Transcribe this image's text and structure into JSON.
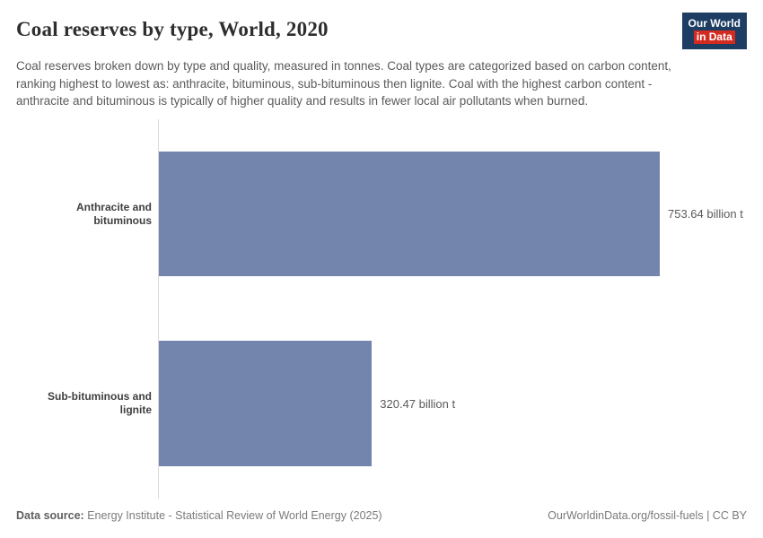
{
  "header": {
    "title": "Coal reserves by type, World, 2020",
    "subtitle": "Coal reserves broken down by type and quality, measured in tonnes. Coal types are categorized based on carbon content, ranking highest to lowest as: anthracite, bituminous, sub-bituminous then lignite. Coal with the highest carbon content - anthracite and bituminous is typically of higher quality and results in fewer local air pollutants when burned.",
    "logo": {
      "line1": "Our World",
      "line2": "in Data",
      "bg_color": "#1d3d63",
      "accent_color": "#d42b21"
    }
  },
  "chart_data": {
    "type": "bar",
    "orientation": "horizontal",
    "title": "Coal reserves by type, World, 2020",
    "unit": "billion t",
    "categories": [
      "Anthracite and bituminous",
      "Sub-bituminous and lignite"
    ],
    "values": [
      753.64,
      320.47
    ],
    "value_labels": [
      "753.64 billion t",
      "320.47 billion t"
    ],
    "bar_color": "#7385ad",
    "axis_line_color": "#d9d9d9",
    "xlim": [
      0,
      753.64
    ],
    "grid": false,
    "legend": "none"
  },
  "footer": {
    "datasource_label": "Data source:",
    "datasource_text": " Energy Institute - Statistical Review of World Energy (2025)",
    "url_text": "OurWorldinData.org/fossil-fuels",
    "license_text": " | CC BY"
  }
}
